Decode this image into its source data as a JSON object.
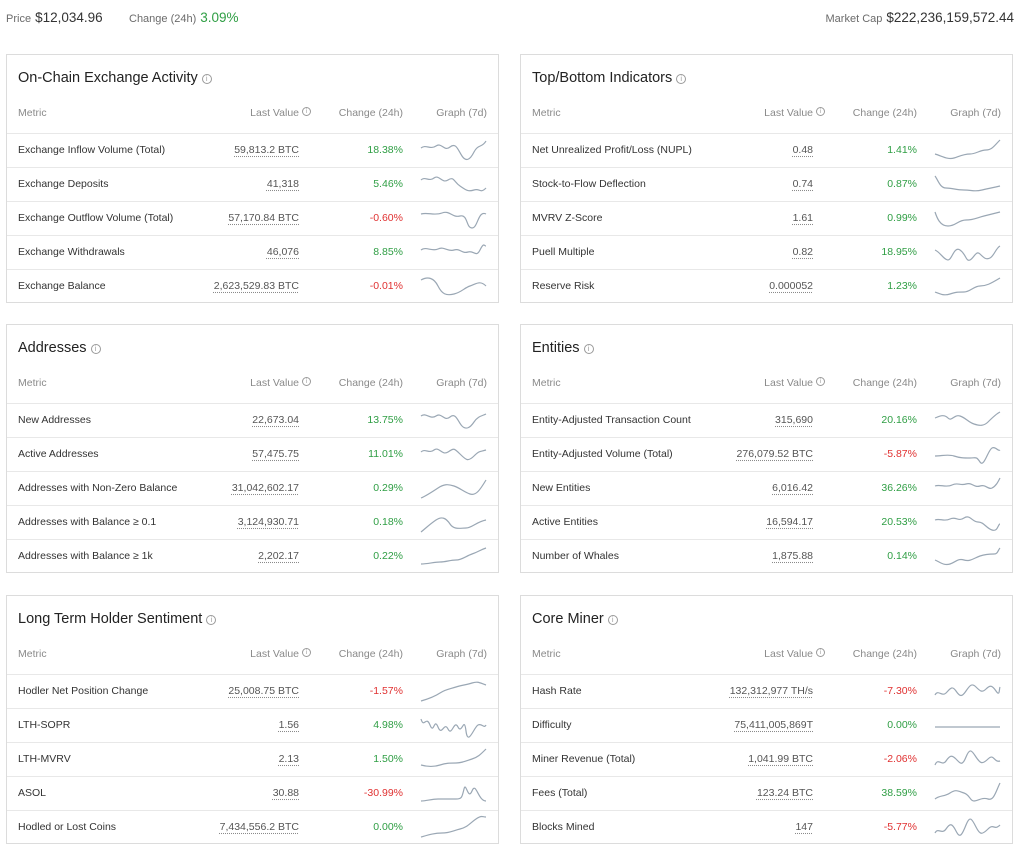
{
  "topbar": {
    "price_label": "Price",
    "price_value": "$12,034.96",
    "change_label": "Change (24h)",
    "change_value": "3.09%",
    "marketcap_label": "Market Cap",
    "marketcap_value": "$222,236,159,572.44"
  },
  "columns": {
    "metric": "Metric",
    "last_value": "Last Value",
    "change": "Change (24h)",
    "graph": "Graph (7d)"
  },
  "colors": {
    "positive": "#2f9e44",
    "negative": "#e03131",
    "sparkline": "#9aa7b4"
  },
  "cards": [
    {
      "title": "On-Chain Exchange Activity",
      "rows": [
        {
          "metric": "Exchange Inflow Volume (Total)",
          "last": "59,813.2 BTC",
          "change": "18.38%",
          "trend": "positive"
        },
        {
          "metric": "Exchange Deposits",
          "last": "41,318",
          "change": "5.46%",
          "trend": "positive"
        },
        {
          "metric": "Exchange Outflow Volume (Total)",
          "last": "57,170.84 BTC",
          "change": "-0.60%",
          "trend": "negative"
        },
        {
          "metric": "Exchange Withdrawals",
          "last": "46,076",
          "change": "8.85%",
          "trend": "positive"
        },
        {
          "metric": "Exchange Balance",
          "last": "2,623,529.83 BTC",
          "change": "-0.01%",
          "trend": "negative"
        }
      ]
    },
    {
      "title": "Top/Bottom Indicators",
      "rows": [
        {
          "metric": "Net Unrealized Profit/Loss (NUPL)",
          "last": "0.48",
          "change": "1.41%",
          "trend": "positive"
        },
        {
          "metric": "Stock-to-Flow Deflection",
          "last": "0.74",
          "change": "0.87%",
          "trend": "positive"
        },
        {
          "metric": "MVRV Z-Score",
          "last": "1.61",
          "change": "0.99%",
          "trend": "positive"
        },
        {
          "metric": "Puell Multiple",
          "last": "0.82",
          "change": "18.95%",
          "trend": "positive"
        },
        {
          "metric": "Reserve Risk",
          "last": "0.000052",
          "change": "1.23%",
          "trend": "positive"
        }
      ]
    },
    {
      "title": "Addresses",
      "rows": [
        {
          "metric": "New Addresses",
          "last": "22,673.04",
          "change": "13.75%",
          "trend": "positive"
        },
        {
          "metric": "Active Addresses",
          "last": "57,475.75",
          "change": "11.01%",
          "trend": "positive"
        },
        {
          "metric": "Addresses with Non-Zero Balance",
          "last": "31,042,602.17",
          "change": "0.29%",
          "trend": "positive"
        },
        {
          "metric": "Addresses with Balance ≥ 0.1",
          "last": "3,124,930.71",
          "change": "0.18%",
          "trend": "positive"
        },
        {
          "metric": "Addresses with Balance ≥ 1k",
          "last": "2,202.17",
          "change": "0.22%",
          "trend": "positive"
        }
      ]
    },
    {
      "title": "Entities",
      "rows": [
        {
          "metric": "Entity-Adjusted Transaction Count",
          "last": "315,690",
          "change": "20.16%",
          "trend": "positive"
        },
        {
          "metric": "Entity-Adjusted Volume (Total)",
          "last": "276,079.52 BTC",
          "change": "-5.87%",
          "trend": "negative"
        },
        {
          "metric": "New Entities",
          "last": "6,016.42",
          "change": "36.26%",
          "trend": "positive"
        },
        {
          "metric": "Active Entities",
          "last": "16,594.17",
          "change": "20.53%",
          "trend": "positive"
        },
        {
          "metric": "Number of Whales",
          "last": "1,875.88",
          "change": "0.14%",
          "trend": "positive"
        }
      ]
    },
    {
      "title": "Long Term Holder Sentiment",
      "rows": [
        {
          "metric": "Hodler Net Position Change",
          "last": "25,008.75 BTC",
          "change": "-1.57%",
          "trend": "negative"
        },
        {
          "metric": "LTH-SOPR",
          "last": "1.56",
          "change": "4.98%",
          "trend": "positive"
        },
        {
          "metric": "LTH-MVRV",
          "last": "2.13",
          "change": "1.50%",
          "trend": "positive"
        },
        {
          "metric": "ASOL",
          "last": "30.88",
          "change": "-30.99%",
          "trend": "negative"
        },
        {
          "metric": "Hodled or Lost Coins",
          "last": "7,434,556.2 BTC",
          "change": "0.00%",
          "trend": "positive"
        }
      ]
    },
    {
      "title": "Core Miner",
      "rows": [
        {
          "metric": "Hash Rate",
          "last": "132,312,977 TH/s",
          "change": "-7.30%",
          "trend": "negative"
        },
        {
          "metric": "Difficulty",
          "last": "75,411,005,869T",
          "change": "0.00%",
          "trend": "positive"
        },
        {
          "metric": "Miner Revenue (Total)",
          "last": "1,041.99 BTC",
          "change": "-2.06%",
          "trend": "negative"
        },
        {
          "metric": "Fees (Total)",
          "last": "123.24 BTC",
          "change": "38.59%",
          "trend": "positive"
        },
        {
          "metric": "Blocks Mined",
          "last": "147",
          "change": "-5.77%",
          "trend": "negative"
        }
      ]
    }
  ]
}
